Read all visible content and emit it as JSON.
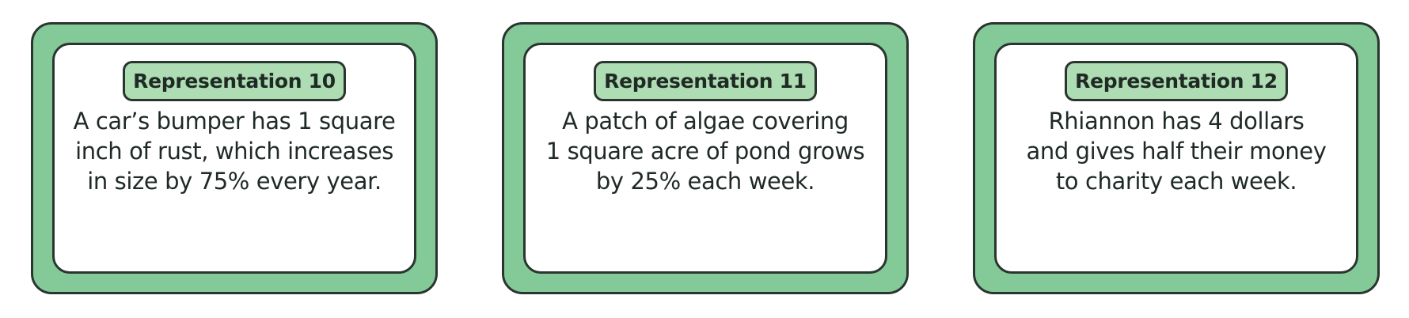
{
  "cards": [
    {
      "title": "Representation 10",
      "lines": [
        "A car’s bumper has 1 square",
        "inch of rust, which increases",
        "in size by 75% every year."
      ]
    },
    {
      "title": "Representation 11",
      "lines": [
        "A patch of algae covering",
        "1 square acre of pond grows",
        "by 25% each week."
      ]
    },
    {
      "title": "Representation 12",
      "lines": [
        "Rhiannon has 4 dollars",
        "and gives half their money",
        "to charity each week."
      ]
    }
  ],
  "colors": {
    "frame": "#84c998",
    "badge": "#aedcb3",
    "border": "#2a3530",
    "text": "#1f2a25"
  }
}
